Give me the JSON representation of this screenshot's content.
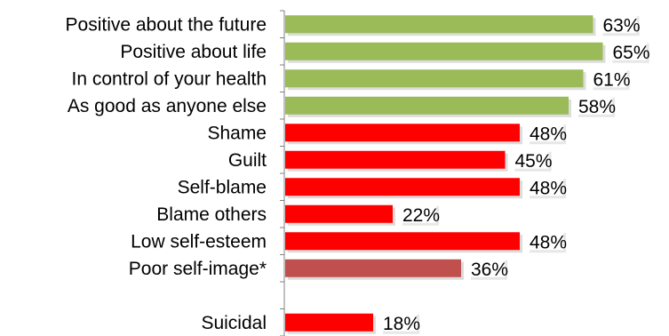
{
  "chart_data": {
    "type": "bar",
    "orientation": "horizontal",
    "categories": [
      "Positive about the future",
      "Positive about life",
      "In control of your health",
      "As good as anyone else",
      "Shame",
      "Guilt",
      "Self-blame",
      "Blame others",
      "Low self-esteem",
      "Poor self-image*",
      "",
      "Suicidal"
    ],
    "values": [
      63,
      65,
      61,
      58,
      48,
      45,
      48,
      22,
      48,
      36,
      null,
      18
    ],
    "value_labels": [
      "63%",
      "65%",
      "61%",
      "58%",
      "48%",
      "45%",
      "48%",
      "22%",
      "48%",
      "36%",
      "",
      "18%"
    ],
    "bar_colors": [
      "#9BBB59",
      "#9BBB59",
      "#9BBB59",
      "#9BBB59",
      "#FF0000",
      "#FF0000",
      "#FF0000",
      "#FF0000",
      "#FF0000",
      "#C0504D",
      "",
      "#FF0000"
    ],
    "xlim": [
      0,
      100
    ],
    "grid": false,
    "title": "",
    "xlabel": "",
    "ylabel": ""
  }
}
